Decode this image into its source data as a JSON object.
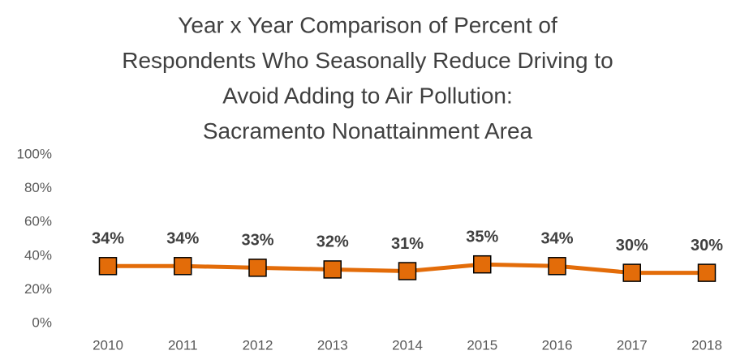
{
  "chart_data": {
    "type": "line",
    "title": [
      "Year x Year Comparison of Percent of",
      "Respondents Who Seasonally Reduce Driving to",
      "Avoid Adding to Air Pollution:",
      "Sacramento Nonattainment Area"
    ],
    "categories": [
      "2010",
      "2011",
      "2012",
      "2013",
      "2014",
      "2015",
      "2016",
      "2017",
      "2018"
    ],
    "series": [
      {
        "color": "#e36c09",
        "values": [
          34,
          34,
          33,
          32,
          31,
          35,
          34,
          30,
          30
        ],
        "value_labels": [
          "34%",
          "34%",
          "33%",
          "32%",
          "31%",
          "35%",
          "34%",
          "30%",
          "30%"
        ]
      }
    ],
    "ylim": [
      0,
      100
    ],
    "yticks": [
      {
        "value": 0,
        "label": "0%"
      },
      {
        "value": 20,
        "label": "20%"
      },
      {
        "value": 40,
        "label": "40%"
      },
      {
        "value": 60,
        "label": "60%"
      },
      {
        "value": 80,
        "label": "80%"
      },
      {
        "value": 100,
        "label": "100%"
      }
    ],
    "grid": false
  }
}
